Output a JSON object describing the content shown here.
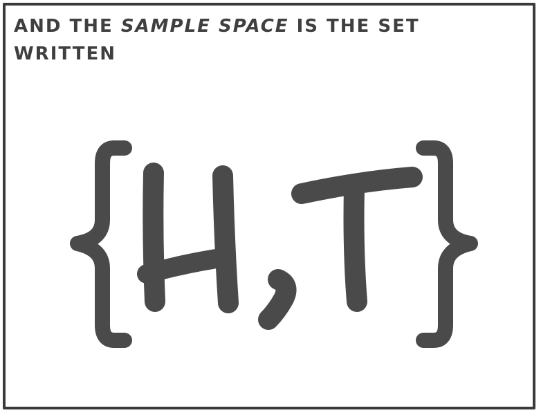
{
  "caption": {
    "part1": "AND THE ",
    "emphasis": "SAMPLE SPACE",
    "part2": " IS THE SET",
    "line2": "WRITTEN"
  },
  "set_notation": {
    "open_brace": "{",
    "element1": "H",
    "separator": ",",
    "element2": "T",
    "close_brace": "}"
  },
  "colors": {
    "ink": "#4a4a4a",
    "border": "#3a3a3a",
    "background": "#ffffff"
  }
}
